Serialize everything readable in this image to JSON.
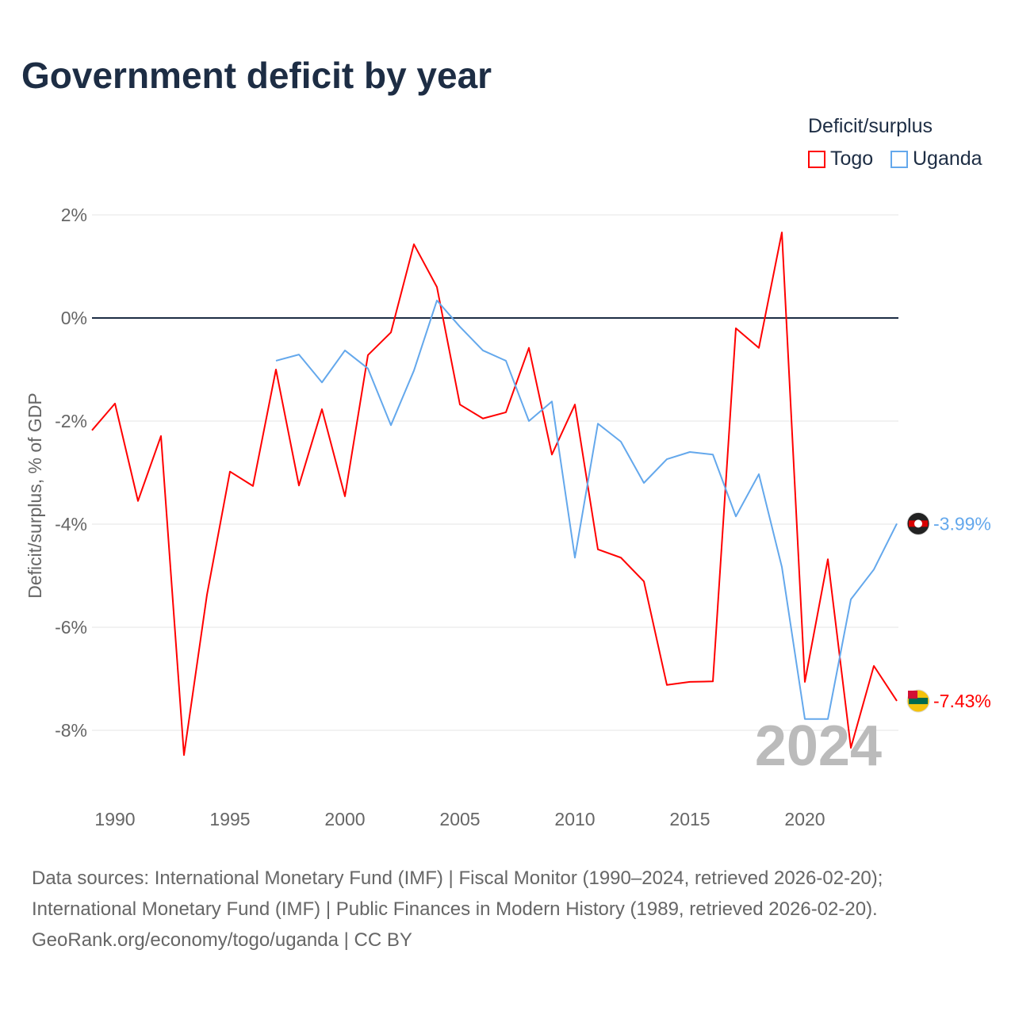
{
  "chart_data": {
    "type": "line",
    "title": "Government deficit by year",
    "ylabel": "Deficit/surplus, % of GDP",
    "xlabel": "",
    "xlim": [
      1989,
      2024
    ],
    "ylim": [
      -9,
      2
    ],
    "x_ticks": [
      1990,
      1995,
      2000,
      2005,
      2010,
      2015,
      2020
    ],
    "y_ticks": [
      2,
      0,
      -2,
      -4,
      -6,
      -8
    ],
    "y_tick_labels": [
      "2%",
      "0%",
      "-2%",
      "-4%",
      "-6%",
      "-8%"
    ],
    "grid": true,
    "legend_title": "Deficit/surplus",
    "legend_placement": "top-right",
    "year_watermark": "2024",
    "series": [
      {
        "name": "Togo",
        "color": "#ff0000",
        "start_year": 1989,
        "end_label": "-7.43%",
        "values": [
          -2.18,
          -1.66,
          -3.55,
          -2.29,
          -8.48,
          -5.37,
          -2.98,
          -3.26,
          -1.0,
          -3.25,
          -1.77,
          -3.46,
          -0.72,
          -0.28,
          1.43,
          0.6,
          -1.68,
          -1.95,
          -1.83,
          -0.58,
          -2.65,
          -1.68,
          -4.49,
          -4.65,
          -5.11,
          -7.12,
          -7.06,
          -7.05,
          -0.2,
          -0.58,
          1.66,
          -7.06,
          -4.68,
          -8.34,
          -6.75,
          -7.43
        ]
      },
      {
        "name": "Uganda",
        "color": "#64a8ec",
        "start_year": 1997,
        "end_label": "-3.99%",
        "values": [
          -0.83,
          -0.71,
          -1.25,
          -0.63,
          -0.98,
          -2.08,
          -1.02,
          0.34,
          -0.17,
          -0.63,
          -0.83,
          -2.0,
          -1.62,
          -4.65,
          -2.05,
          -2.4,
          -3.2,
          -2.74,
          -2.6,
          -2.65,
          -3.85,
          -3.03,
          -4.83,
          -7.78,
          -7.78,
          -5.46,
          -4.88,
          -3.99
        ]
      }
    ]
  },
  "footer": {
    "line1": "Data sources: International Monetary Fund (IMF) | Fiscal Monitor (1990–2024, retrieved 2026-02-20);",
    "line2": "International Monetary Fund (IMF) | Public Finances in Modern History (1989, retrieved 2026-02-20).",
    "line3": "GeoRank.org/economy/togo/uganda | CC BY"
  }
}
